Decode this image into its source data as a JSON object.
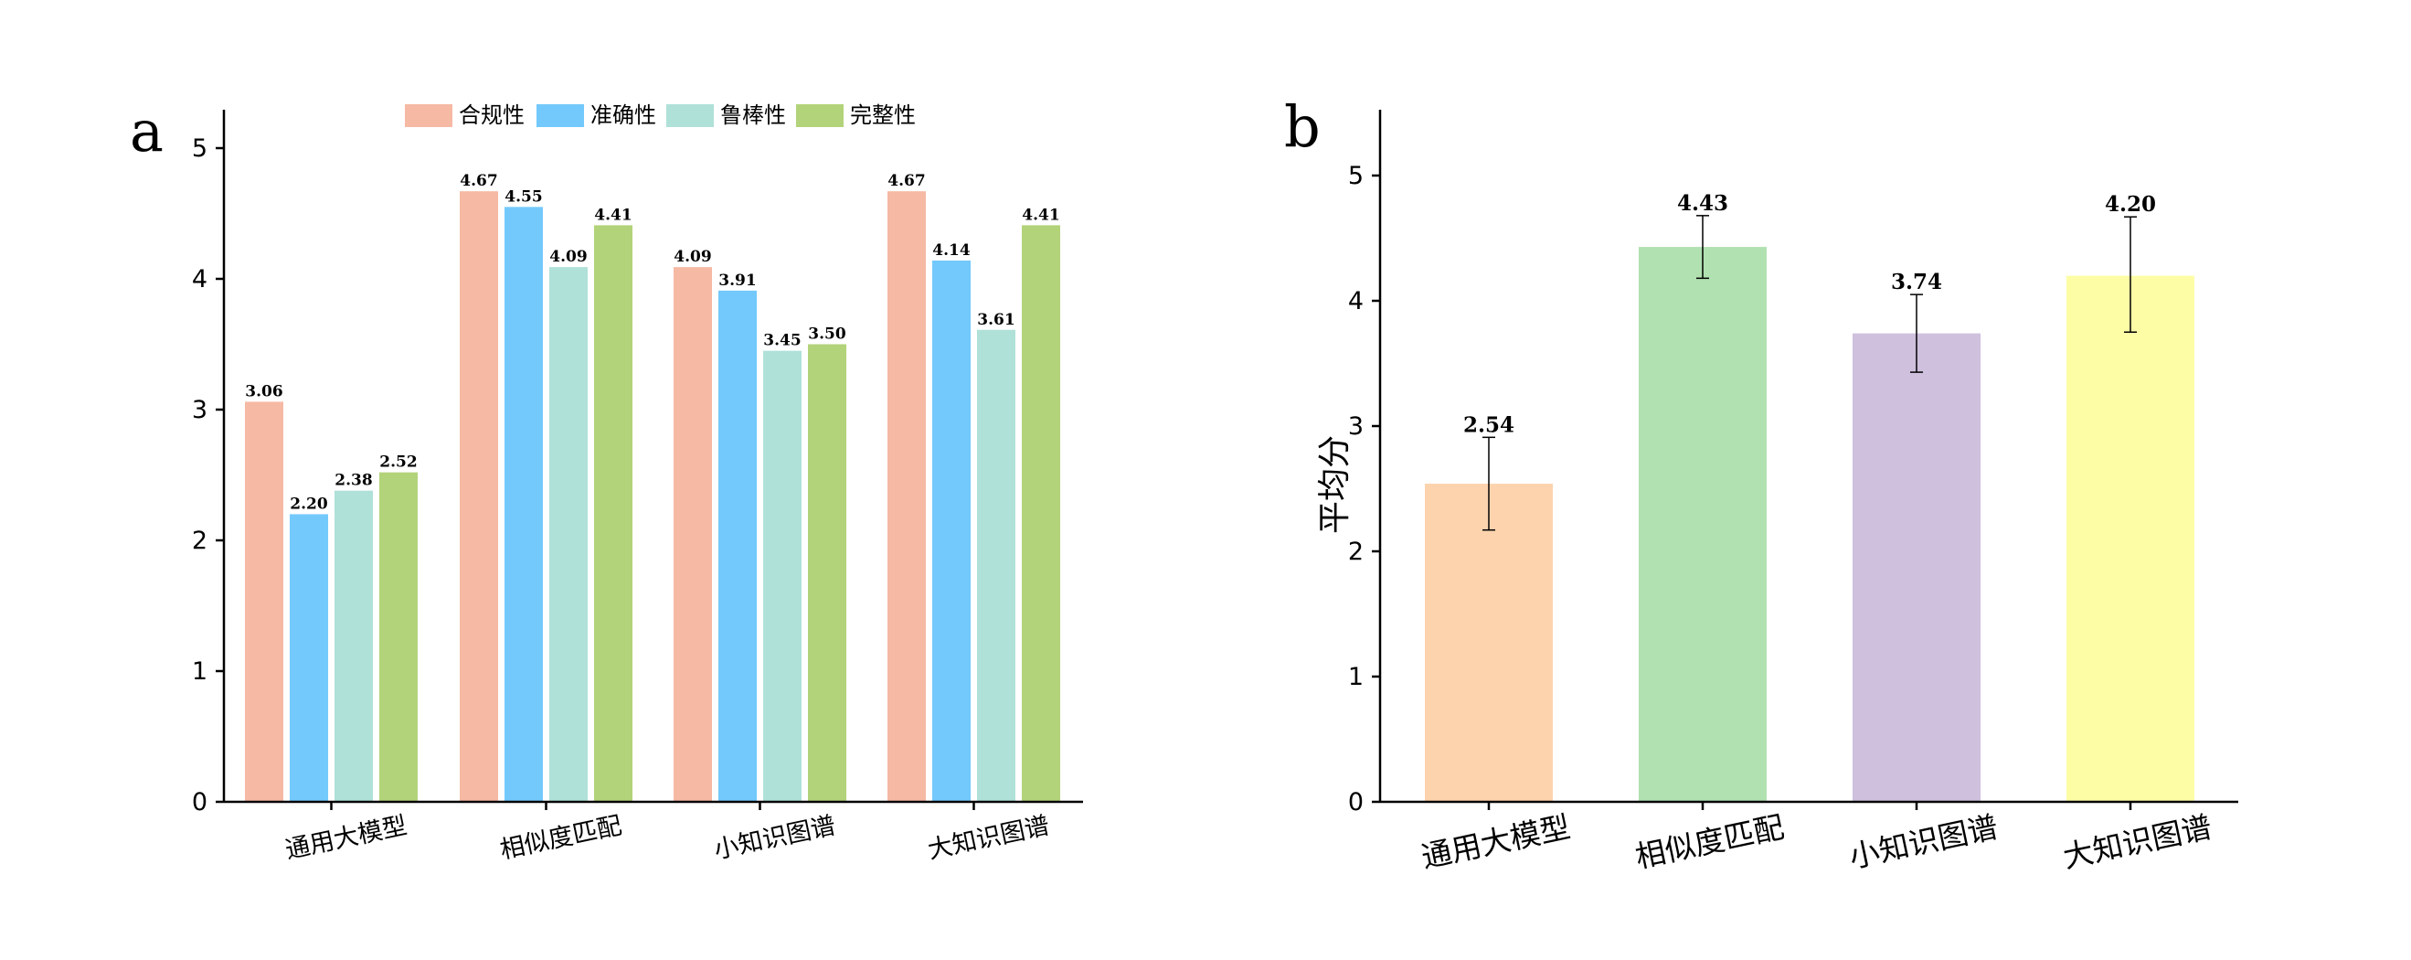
{
  "panels": [
    {
      "letter": "a"
    },
    {
      "letter": "b"
    }
  ],
  "chart_data": [
    {
      "type": "bar",
      "categories": [
        "通用大模型",
        "相似度匹配",
        "小知识图谱",
        "大知识图谱"
      ],
      "series": [
        {
          "name": "合规性",
          "values": [
            3.06,
            4.67,
            4.09,
            4.67
          ],
          "color": "#F5B9A4"
        },
        {
          "name": "准确性",
          "values": [
            2.2,
            4.55,
            3.91,
            4.14
          ],
          "color": "#73C9FB"
        },
        {
          "name": "鲁棒性",
          "values": [
            2.38,
            4.09,
            3.45,
            3.61
          ],
          "color": "#AFE1D9"
        },
        {
          "name": "完整性",
          "values": [
            2.52,
            4.41,
            3.5,
            4.41
          ],
          "color": "#B3D37A"
        }
      ],
      "data_labels": [
        [
          "3.06",
          "2.20",
          "2.38",
          "2.52"
        ],
        [
          "4.67",
          "4.55",
          "4.09",
          "4.41"
        ],
        [
          "4.09",
          "3.91",
          "3.45",
          "3.50"
        ],
        [
          "4.67",
          "4.14",
          "3.61",
          "4.41"
        ]
      ],
      "ylim": [
        0,
        5.3
      ],
      "yticks": [
        "0",
        "1",
        "2",
        "3",
        "4",
        "5"
      ],
      "xlabel": "",
      "ylabel": "",
      "legend_position": "top",
      "grid": false
    },
    {
      "type": "bar",
      "categories": [
        "通用大模型",
        "相似度匹配",
        "小知识图谱",
        "大知识图谱"
      ],
      "values": [
        2.54,
        4.43,
        3.74,
        4.2
      ],
      "data_labels": [
        "2.54",
        "4.43",
        "3.74",
        "4.20"
      ],
      "error_low": [
        2.17,
        4.18,
        3.43,
        3.75
      ],
      "error_high": [
        2.91,
        4.68,
        4.05,
        4.67
      ],
      "colors": [
        "#FDD3AE",
        "#B1E0B1",
        "#CFC0DE",
        "#FDFDA6"
      ],
      "ylim": [
        0,
        5.5
      ],
      "yticks": [
        "0",
        "1",
        "2",
        "3",
        "4",
        "5"
      ],
      "xlabel": "",
      "ylabel": "平均分",
      "grid": false
    }
  ]
}
